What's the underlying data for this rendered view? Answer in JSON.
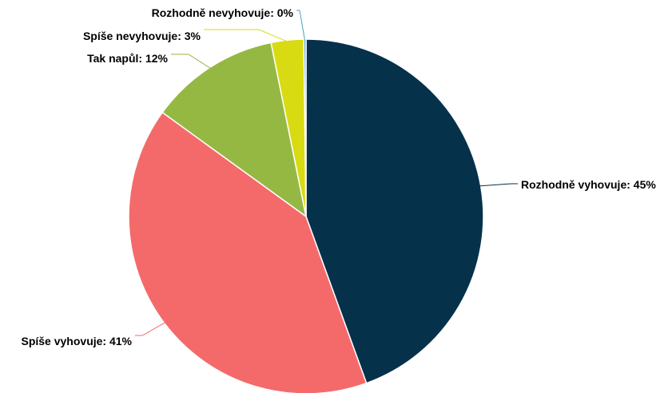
{
  "chart_data": {
    "type": "pie",
    "title": "",
    "slices": [
      {
        "label": "Rozhodně vyhovuje: 45%",
        "value": 45,
        "color": "#05314a"
      },
      {
        "label": "Spíše vyhovuje: 41%",
        "value": 41,
        "color": "#f46a6a"
      },
      {
        "label": "Tak napůl: 12%",
        "value": 12,
        "color": "#95b843"
      },
      {
        "label": "Spíše nevyhovuje: 3%",
        "value": 3,
        "color": "#d9db12"
      },
      {
        "label": "Rozhodně nevyhovuje: 0%",
        "value": 0.2,
        "color": "#4da2c7"
      }
    ],
    "legend": "none",
    "data_labels": "outside with leader lines"
  }
}
